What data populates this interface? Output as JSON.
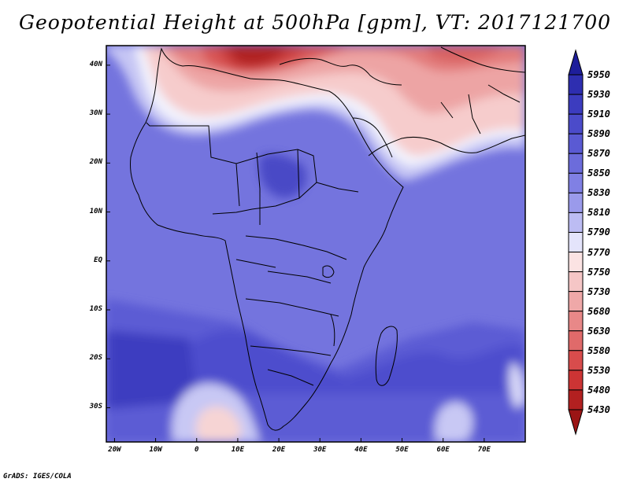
{
  "title": "Geopotential Height at 500hPa [gpm], VT: 2017121700",
  "credit": "GrADS: IGES/COLA",
  "map": {
    "variable": "500 hPa geopotential height",
    "units": "gpm",
    "valid_time": "2017121700",
    "region": "Africa and surrounding oceans",
    "lat_labels": [
      "40N",
      "30N",
      "20N",
      "10N",
      "EQ",
      "10S",
      "20S",
      "30S"
    ],
    "lon_labels": [
      "20W",
      "10W",
      "0",
      "10E",
      "20E",
      "30E",
      "40E",
      "50E",
      "60E",
      "70E"
    ],
    "lat_values": [
      40,
      30,
      20,
      10,
      0,
      -10,
      -20,
      -30
    ],
    "lon_values": [
      -20,
      -10,
      0,
      10,
      20,
      30,
      40,
      50,
      60,
      70
    ],
    "lon_range": [
      -22,
      80
    ],
    "lat_range": [
      -37,
      44
    ]
  },
  "colorbar": {
    "levels": [
      "5950",
      "5930",
      "5910",
      "5890",
      "5870",
      "5850",
      "5830",
      "5810",
      "5790",
      "5770",
      "5750",
      "5730",
      "5680",
      "5630",
      "5580",
      "5530",
      "5480",
      "5430"
    ],
    "colors": [
      "#1e1e9b",
      "#2e2eb0",
      "#3c3cbf",
      "#4b4bca",
      "#5a5ad3",
      "#6c6cdb",
      "#8080e4",
      "#9a9aeb",
      "#bcbcf3",
      "#e4e4fb",
      "#fbe3e3",
      "#f5c6c6",
      "#efa8a8",
      "#e88888",
      "#e06a6a",
      "#d84c4c",
      "#cc3434",
      "#b22020",
      "#9b1515"
    ]
  }
}
